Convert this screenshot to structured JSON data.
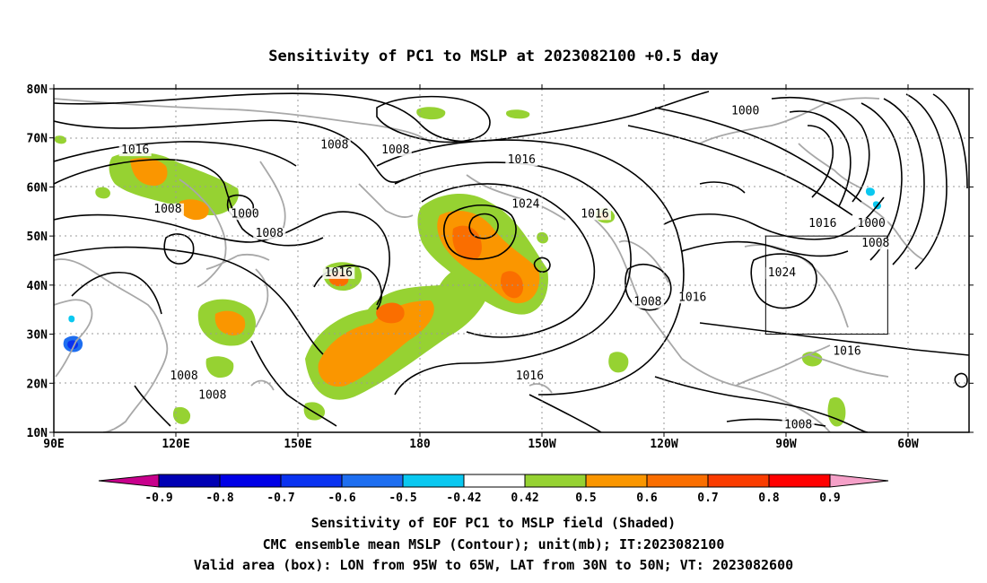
{
  "title": "Sensitivity of PC1 to MSLP at 2023082100 +0.5 day",
  "map": {
    "lat_ticks": [
      "80N",
      "70N",
      "60N",
      "50N",
      "40N",
      "30N",
      "20N",
      "10N"
    ],
    "lon_ticks": [
      "90E",
      "120E",
      "150E",
      "180",
      "150W",
      "120W",
      "90W",
      "60W"
    ],
    "lon_range": [
      90,
      315
    ],
    "lat_range": [
      10,
      80
    ],
    "valid_box": {
      "lon_min": 265,
      "lon_max": 295,
      "lat_min": 30,
      "lat_max": 50
    },
    "contour_labels": [
      {
        "text": "1016",
        "lon": 110,
        "lat": 67
      },
      {
        "text": "1008",
        "lon": 118,
        "lat": 55
      },
      {
        "text": "1000",
        "lon": 137,
        "lat": 54
      },
      {
        "text": "1008",
        "lon": 143,
        "lat": 50
      },
      {
        "text": "1008",
        "lon": 159,
        "lat": 68
      },
      {
        "text": "1008",
        "lon": 174,
        "lat": 67
      },
      {
        "text": "1016",
        "lon": 160,
        "lat": 42
      },
      {
        "text": "1016",
        "lon": 205,
        "lat": 65
      },
      {
        "text": "1024",
        "lon": 206,
        "lat": 56
      },
      {
        "text": "1016",
        "lon": 223,
        "lat": 54
      },
      {
        "text": "1000",
        "lon": 260,
        "lat": 75
      },
      {
        "text": "1016",
        "lon": 279,
        "lat": 52
      },
      {
        "text": "1000",
        "lon": 291,
        "lat": 52
      },
      {
        "text": "1008",
        "lon": 292,
        "lat": 48
      },
      {
        "text": "1024",
        "lon": 269,
        "lat": 42
      },
      {
        "text": "1008",
        "lon": 236,
        "lat": 36
      },
      {
        "text": "1016",
        "lon": 247,
        "lat": 37
      },
      {
        "text": "1016",
        "lon": 285,
        "lat": 26
      },
      {
        "text": "1016",
        "lon": 207,
        "lat": 21
      },
      {
        "text": "1008",
        "lon": 122,
        "lat": 21
      },
      {
        "text": "1008",
        "lon": 129,
        "lat": 17
      },
      {
        "text": "1008",
        "lon": 273,
        "lat": 11
      }
    ]
  },
  "colorbar": {
    "labels": [
      "-0.9",
      "-0.8",
      "-0.7",
      "-0.6",
      "-0.5",
      "-0.42",
      "0.42",
      "0.5",
      "0.6",
      "0.7",
      "0.8",
      "0.9"
    ],
    "colors": [
      "#c8008c",
      "#0000b4",
      "#0000e6",
      "#0a32f0",
      "#1e6ef0",
      "#0ac8f0",
      "#ffffff",
      "#96d232",
      "#fa9600",
      "#fa6e00",
      "#fa3c00",
      "#ff0000",
      "#f5a0c8"
    ]
  },
  "footer": {
    "line1": "Sensitivity of EOF PC1 to MSLP field (Shaded)",
    "line2": "CMC ensemble mean MSLP (Contour); unit(mb); IT:2023082100",
    "line3": "Valid area (box): LON from 95W to 65W, LAT from 30N to 50N; VT: 2023082600"
  }
}
